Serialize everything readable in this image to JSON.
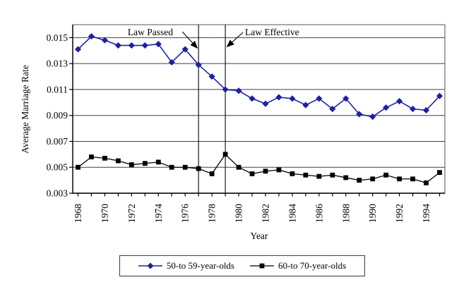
{
  "chart_data": {
    "type": "line",
    "title": "",
    "xlabel": "Year",
    "ylabel": "Average Marriage Rate",
    "x": [
      1968,
      1969,
      1970,
      1971,
      1972,
      1973,
      1974,
      1975,
      1976,
      1977,
      1978,
      1979,
      1980,
      1981,
      1982,
      1983,
      1984,
      1985,
      1986,
      1987,
      1988,
      1989,
      1990,
      1991,
      1992,
      1993,
      1994,
      1995
    ],
    "xtick_label_step": 2,
    "ylim": [
      0.003,
      0.016
    ],
    "yticks": [
      0.003,
      0.005,
      0.007,
      0.009,
      0.011,
      0.013,
      0.015
    ],
    "ytick_decimals": 3,
    "grid": "horizontal",
    "legend_position": "bottom-center",
    "series": [
      {
        "name": "50-to 59-year-olds",
        "color": "#21219c",
        "marker": "diamond",
        "values": [
          0.0141,
          0.0151,
          0.0148,
          0.0144,
          0.0144,
          0.0144,
          0.0145,
          0.0131,
          0.0141,
          0.0129,
          0.012,
          0.011,
          0.0109,
          0.0103,
          0.0099,
          0.0104,
          0.0103,
          0.0098,
          0.0103,
          0.0095,
          0.0103,
          0.0091,
          0.0089,
          0.0096,
          0.0101,
          0.0095,
          0.0094,
          0.0105
        ]
      },
      {
        "name": "60-to 70-year-olds",
        "color": "#000000",
        "marker": "square",
        "values": [
          0.005,
          0.0058,
          0.0057,
          0.0055,
          0.0052,
          0.0053,
          0.0054,
          0.005,
          0.005,
          0.0049,
          0.0045,
          0.006,
          0.005,
          0.0045,
          0.0047,
          0.0048,
          0.0045,
          0.0044,
          0.0043,
          0.0044,
          0.0042,
          0.004,
          0.0041,
          0.0044,
          0.0041,
          0.0041,
          0.0038,
          0.0046
        ]
      }
    ],
    "annotations": [
      {
        "label": "Law Passed",
        "x": 1977,
        "line": "vertical",
        "arrow": "down-right",
        "label_side": "left"
      },
      {
        "label": "Law Effective",
        "x": 1979,
        "line": "vertical",
        "arrow": "down-left",
        "label_side": "right"
      }
    ]
  },
  "colors": {
    "background": "#ffffff",
    "frame": "#707070",
    "grid": "#404040",
    "axis": "#000000",
    "annotation_line": "#1a1a1a",
    "text": "#000000"
  }
}
